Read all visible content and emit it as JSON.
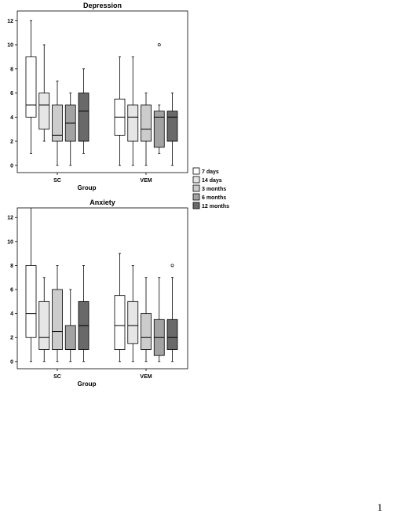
{
  "page": {
    "number": "1"
  },
  "legend": {
    "items": [
      {
        "label": "7 days",
        "color": "#ffffff"
      },
      {
        "label": "14 days",
        "color": "#e6e6e6"
      },
      {
        "label": "3 months",
        "color": "#cccccc"
      },
      {
        "label": "6 months",
        "color": "#a3a3a3"
      },
      {
        "label": "12 months",
        "color": "#696969"
      }
    ]
  },
  "chart_data": [
    {
      "type": "boxplot",
      "title": "Depression",
      "xlabel": "Group",
      "ylabel": "",
      "categories": [
        "SC",
        "VEM"
      ],
      "ylim": [
        -0.6,
        12.8
      ],
      "yticks": [
        0,
        2,
        4,
        6,
        8,
        10,
        12
      ],
      "series": [
        {
          "name": "7 days",
          "stats": [
            {
              "min": 1,
              "q1": 4,
              "median": 5,
              "q3": 9,
              "max": 12,
              "outliers": []
            },
            {
              "min": 0,
              "q1": 2.5,
              "median": 4,
              "q3": 5.5,
              "max": 9,
              "outliers": []
            }
          ]
        },
        {
          "name": "14 days",
          "stats": [
            {
              "min": 2,
              "q1": 3,
              "median": 5,
              "q3": 6,
              "max": 10,
              "outliers": []
            },
            {
              "min": 0,
              "q1": 2,
              "median": 4,
              "q3": 5,
              "max": 9,
              "outliers": []
            }
          ]
        },
        {
          "name": "3 months",
          "stats": [
            {
              "min": 0,
              "q1": 2,
              "median": 2.5,
              "q3": 5,
              "max": 7,
              "outliers": []
            },
            {
              "min": 0,
              "q1": 2,
              "median": 3,
              "q3": 5,
              "max": 6,
              "outliers": []
            }
          ]
        },
        {
          "name": "6 months",
          "stats": [
            {
              "min": 0,
              "q1": 2,
              "median": 3.5,
              "q3": 5,
              "max": 6,
              "outliers": []
            },
            {
              "min": 1,
              "q1": 1.5,
              "median": 4,
              "q3": 4.5,
              "max": 5,
              "outliers": [
                10
              ]
            }
          ]
        },
        {
          "name": "12 months",
          "stats": [
            {
              "min": 1,
              "q1": 2,
              "median": 4.5,
              "q3": 6,
              "max": 8,
              "outliers": []
            },
            {
              "min": 0,
              "q1": 2,
              "median": 4,
              "q3": 4.5,
              "max": 6,
              "outliers": []
            }
          ]
        }
      ]
    },
    {
      "type": "boxplot",
      "title": "Anxiety",
      "xlabel": "Group",
      "ylabel": "",
      "categories": [
        "SC",
        "VEM"
      ],
      "ylim": [
        -0.6,
        12.8
      ],
      "yticks": [
        0,
        2,
        4,
        6,
        8,
        10,
        12
      ],
      "series": [
        {
          "name": "7 days",
          "stats": [
            {
              "min": 0,
              "q1": 2,
              "median": 4,
              "q3": 8,
              "max": 13,
              "outliers": []
            },
            {
              "min": 0,
              "q1": 1,
              "median": 3,
              "q3": 5.5,
              "max": 9,
              "outliers": []
            }
          ]
        },
        {
          "name": "14 days",
          "stats": [
            {
              "min": 0,
              "q1": 1,
              "median": 2,
              "q3": 5,
              "max": 7,
              "outliers": []
            },
            {
              "min": 0,
              "q1": 1.5,
              "median": 3,
              "q3": 5,
              "max": 8,
              "outliers": []
            }
          ]
        },
        {
          "name": "3 months",
          "stats": [
            {
              "min": 0,
              "q1": 1,
              "median": 2.5,
              "q3": 6,
              "max": 8,
              "outliers": []
            },
            {
              "min": 0,
              "q1": 1,
              "median": 2,
              "q3": 4,
              "max": 7,
              "outliers": []
            }
          ]
        },
        {
          "name": "6 months",
          "stats": [
            {
              "min": 0,
              "q1": 1,
              "median": 1,
              "q3": 3,
              "max": 6,
              "outliers": []
            },
            {
              "min": 0,
              "q1": 0.5,
              "median": 2,
              "q3": 3.5,
              "max": 7,
              "outliers": []
            }
          ]
        },
        {
          "name": "12 months",
          "stats": [
            {
              "min": 0,
              "q1": 1,
              "median": 3,
              "q3": 5,
              "max": 8,
              "outliers": []
            },
            {
              "min": 0,
              "q1": 1,
              "median": 2,
              "q3": 3.5,
              "max": 7,
              "outliers": [
                8
              ]
            }
          ]
        }
      ]
    }
  ]
}
